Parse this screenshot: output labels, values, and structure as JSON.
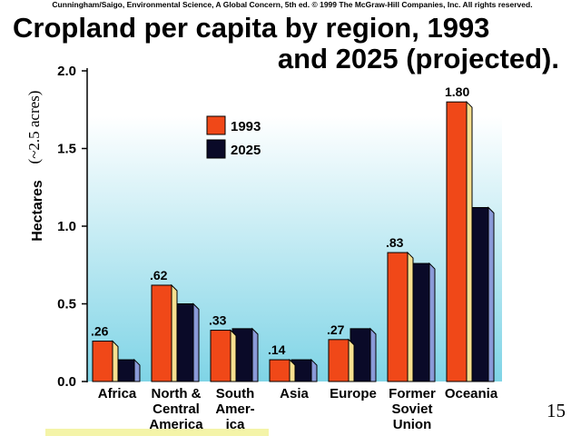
{
  "slide": {
    "credit": "Cunningham/Saigo, Environmental Science, A Global Concern, 5th ed. © 1999 The McGraw-Hill Companies, Inc. All rights reserved.",
    "title_line1": "Cropland per capita by region, 1993",
    "title_line2": "and 2025 (projected).",
    "acres_note": "(~2.5 acres)",
    "slide_number": "15"
  },
  "colors": {
    "series_1993": "#f04818",
    "series_2025": "#0a0a28",
    "plot_bg_top": "#ffffff",
    "plot_bg_bottom": "#7fd4e6"
  },
  "chart_data": {
    "type": "bar",
    "title": "Cropland per capita by region, 1993 and 2025 (projected).",
    "xlabel": "",
    "ylabel": "Hectares",
    "ylim": [
      0,
      2.0
    ],
    "yticks": [
      "0.0",
      "0.5",
      "1.0",
      "1.5",
      "2.0"
    ],
    "grid": false,
    "legend_position": "top-left",
    "categories": [
      [
        "Africa"
      ],
      [
        "North &",
        "Central",
        "America"
      ],
      [
        "South",
        "Amer-",
        "ica"
      ],
      [
        "Asia"
      ],
      [
        "Europe"
      ],
      [
        "Former",
        "Soviet",
        "Union"
      ],
      [
        "Oceania"
      ]
    ],
    "series": [
      {
        "name": "1993",
        "values": [
          0.26,
          0.62,
          0.33,
          0.14,
          0.27,
          0.83,
          1.8
        ],
        "labels": [
          ".26",
          ".62",
          ".33",
          ".14",
          ".27",
          ".83",
          "1.80"
        ]
      },
      {
        "name": "2025",
        "values": [
          0.14,
          0.5,
          0.34,
          0.14,
          0.34,
          0.76,
          1.12
        ]
      }
    ]
  }
}
